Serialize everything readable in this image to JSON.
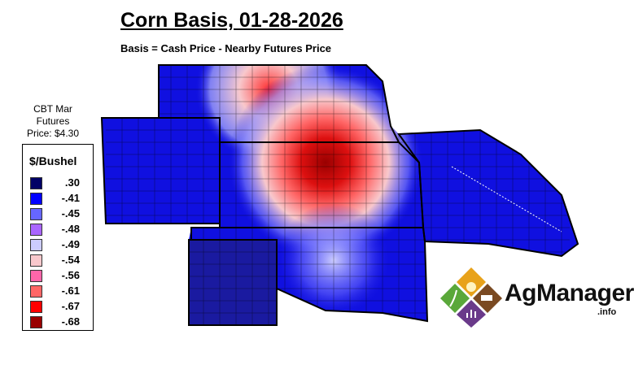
{
  "title": "Corn Basis, 01-28-2026",
  "subtitle": "Basis = Cash Price - Nearby Futures Price",
  "futures_note": {
    "line1": "CBT Mar",
    "line2": "Futures",
    "line3": "Price: $4.30"
  },
  "legend": {
    "unit": "$/Bushel",
    "items": [
      {
        "label": ".30",
        "color": "#000066"
      },
      {
        "label": "-.41",
        "color": "#0000ff"
      },
      {
        "label": "-.45",
        "color": "#6666ff"
      },
      {
        "label": "-.48",
        "color": "#aa66ff"
      },
      {
        "label": "-.49",
        "color": "#ccccff"
      },
      {
        "label": "-.54",
        "color": "#f8c8cc"
      },
      {
        "label": "-.56",
        "color": "#ff66aa"
      },
      {
        "label": "-.61",
        "color": "#ff6666"
      },
      {
        "label": "-.67",
        "color": "#ff0000"
      },
      {
        "label": "-.68",
        "color": "#990000"
      }
    ]
  },
  "logo": {
    "name": "AgManager",
    "suffix": ".info"
  }
}
